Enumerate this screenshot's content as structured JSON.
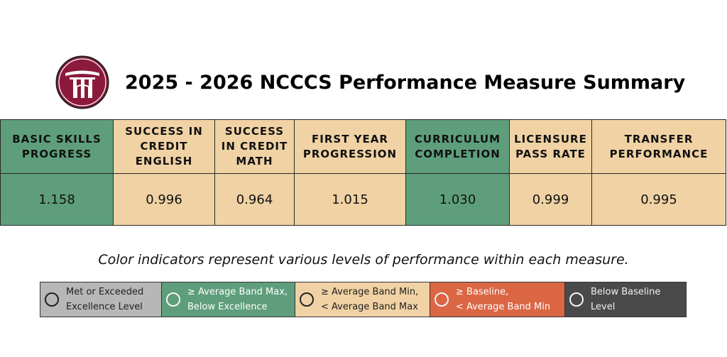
{
  "title": "2025 - 2026 NCCCS Performance Measure Summary",
  "measures": [
    {
      "label": "BASIC SKILLS PROGRESS",
      "value": "1.158",
      "status": "green"
    },
    {
      "label": "SUCCESS IN CREDIT ENGLISH",
      "value": "0.996",
      "status": "tan"
    },
    {
      "label": "SUCCESS IN CREDIT MATH",
      "value": "0.964",
      "status": "tan"
    },
    {
      "label": "FIRST YEAR PROGRESSION",
      "value": "1.015",
      "status": "tan"
    },
    {
      "label": "CURRICULUM COMPLETION",
      "value": "1.030",
      "status": "green"
    },
    {
      "label": "LICENSURE PASS RATE",
      "value": "0.999",
      "status": "tan"
    },
    {
      "label": "TRANSFER PERFORMANCE",
      "value": "0.995",
      "status": "tan"
    }
  ],
  "caption": "Color indicators represent various levels of performance within each measure.",
  "legend": [
    {
      "line1": "Met or Exceeded",
      "line2": "Excellence Level",
      "color": "#b7b7b7"
    },
    {
      "line1": "≥ Average Band Max,",
      "line2": "Below Excellence",
      "color": "#5e9e7c"
    },
    {
      "line1": "≥ Average Band Min,",
      "line2": "< Average Band Max",
      "color": "#f0d2a4"
    },
    {
      "line1": "≥ Baseline,",
      "line2": "< Average Band Min",
      "color": "#db6644"
    },
    {
      "line1": "Below Baseline",
      "line2": "Level",
      "color": "#4a4a4a"
    }
  ],
  "colors": {
    "green": "#5e9e7c",
    "tan": "#f0d2a4",
    "logo_maroon": "#8c1a3d"
  }
}
